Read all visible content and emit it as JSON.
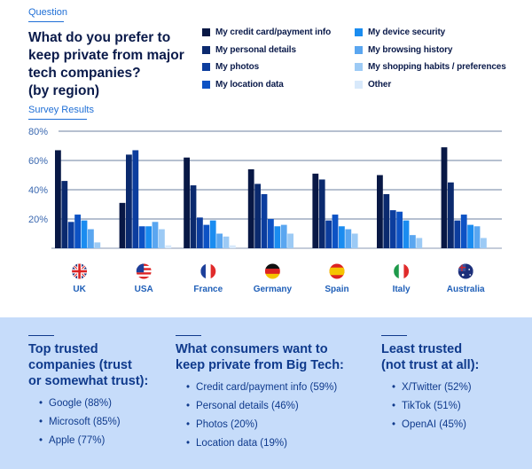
{
  "header": {
    "question_label": "Question",
    "title_lines": [
      "What do you prefer to",
      "keep private from major",
      "tech companies?",
      "(by region)"
    ],
    "survey_label": "Survey Results"
  },
  "colors": [
    "#081845",
    "#0b2a6e",
    "#0c3d9e",
    "#0d52c4",
    "#1a8cf0",
    "#5aa6f0",
    "#9ccaf5",
    "#d8e9fb"
  ],
  "chart_data": {
    "type": "bar",
    "categories": [
      "UK",
      "USA",
      "France",
      "Germany",
      "Spain",
      "Italy",
      "Australia"
    ],
    "ylim": [
      0,
      80
    ],
    "yticks": [
      "",
      "20%",
      "40%",
      "60%",
      "80%"
    ],
    "ytick_values": [
      0,
      20,
      40,
      60,
      80
    ],
    "grid": true,
    "legend_position": "top-right",
    "series": [
      {
        "name": "My credit card/payment info",
        "values": [
          67,
          31,
          62,
          54,
          51,
          50,
          69
        ]
      },
      {
        "name": "My personal details",
        "values": [
          46,
          64,
          43,
          44,
          47,
          37,
          45
        ]
      },
      {
        "name": "My photos",
        "values": [
          18,
          67,
          21,
          37,
          19,
          26,
          19
        ]
      },
      {
        "name": "My location data",
        "values": [
          23,
          15,
          16,
          20,
          23,
          25,
          23
        ]
      },
      {
        "name": "My device security",
        "values": [
          19,
          15,
          19,
          15,
          15,
          19,
          16
        ]
      },
      {
        "name": "My browsing history",
        "values": [
          13,
          18,
          10,
          16,
          13,
          9,
          15
        ]
      },
      {
        "name": "My shopping habits / preferences",
        "values": [
          4,
          13,
          8,
          10,
          10,
          7,
          7
        ]
      },
      {
        "name": "Other",
        "values": [
          0,
          2,
          2,
          0,
          0,
          0,
          0
        ]
      }
    ]
  },
  "bottom": {
    "trusted": {
      "title_lines": [
        "Top trusted",
        "companies (trust",
        "or somewhat trust):"
      ],
      "items": [
        "Google (88%)",
        "Microsoft (85%)",
        "Apple (77%)"
      ]
    },
    "private": {
      "title_lines": [
        "What consumers want to",
        "keep private from Big Tech:"
      ],
      "items": [
        "Credit card/payment info (59%)",
        "Personal details (46%)",
        "Photos (20%)",
        "Location data (19%)"
      ]
    },
    "least": {
      "title_lines": [
        "Least trusted",
        "(not trust at all):"
      ],
      "items": [
        "X/Twitter (52%)",
        "TikTok (51%)",
        "OpenAI (45%)"
      ]
    }
  }
}
